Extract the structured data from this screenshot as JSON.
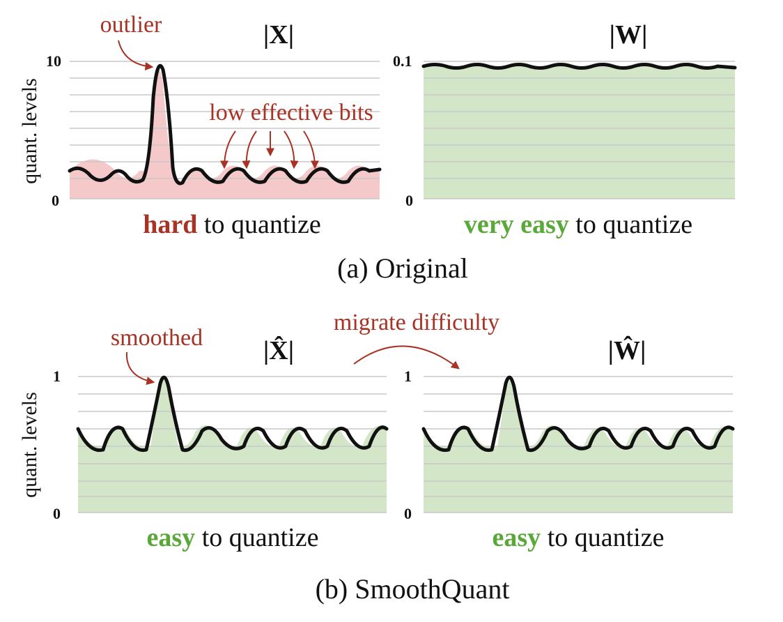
{
  "panels": {
    "a": {
      "caption": "(a) Original",
      "ylabel": "quant. levels",
      "left": {
        "title": "|X|",
        "ytick_top": "10",
        "ytick_bottom": "0",
        "caption_highlight": "hard",
        "caption_rest": " to quantize",
        "highlight_color": "#a83224",
        "fill_color": "#f5c9c9"
      },
      "right": {
        "title": "|W|",
        "ytick_top": "0.1",
        "ytick_bottom": "0",
        "caption_highlight": "very easy",
        "caption_rest": " to quantize",
        "highlight_color": "#5aa83a",
        "fill_color": "#d3e7c8"
      },
      "annotations": {
        "outlier": "outlier",
        "low_bits": "low effective bits"
      }
    },
    "b": {
      "caption": "(b) SmoothQuant",
      "ylabel": "quant. levels",
      "left": {
        "title": "|X̂|",
        "ytick_top": "1",
        "ytick_bottom": "0",
        "caption_highlight": "easy",
        "caption_rest": " to quantize",
        "highlight_color": "#5aa83a",
        "fill_color": "#d3e7c8"
      },
      "right": {
        "title": "|Ŵ|",
        "ytick_top": "1",
        "ytick_bottom": "0",
        "caption_highlight": "easy",
        "caption_rest": " to quantize",
        "highlight_color": "#5aa83a",
        "fill_color": "#d3e7c8"
      },
      "annotations": {
        "smoothed": "smoothed",
        "migrate": "migrate difficulty"
      }
    }
  },
  "colors": {
    "annotation": "#a83224",
    "easy": "#5aa83a",
    "hard": "#a83224",
    "red_fill": "#f5c9c9",
    "green_fill": "#d3e7c8"
  }
}
